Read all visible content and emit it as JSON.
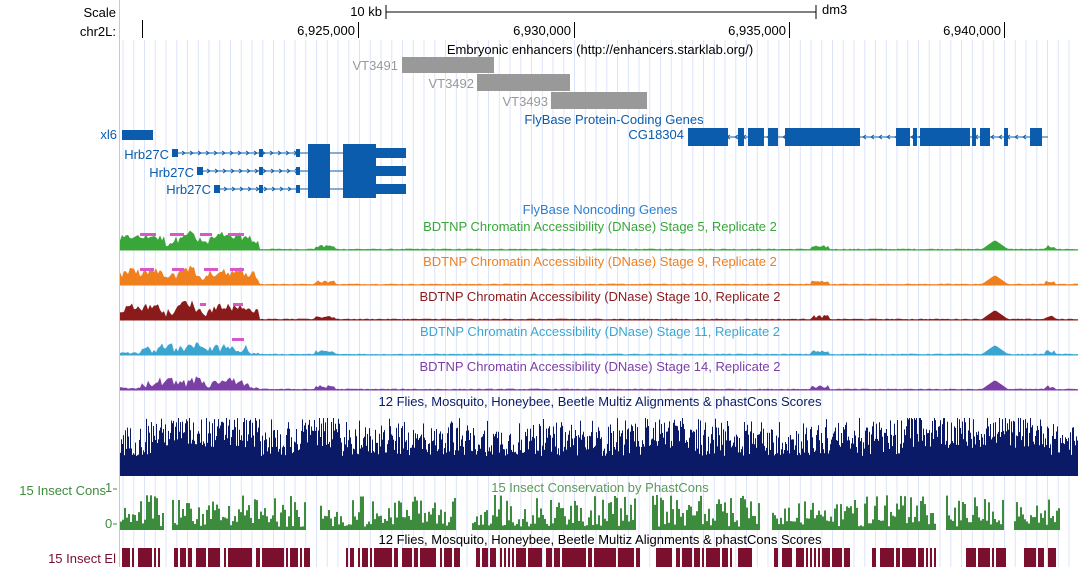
{
  "browser": {
    "scale_label": "Scale",
    "chrom_label": "chr2L:",
    "scalebar_label": "10 kb",
    "assembly": "dm3",
    "ticks": [
      "6,925,000",
      "6,930,000",
      "6,935,000",
      "6,940,000"
    ]
  },
  "tracks": {
    "enhancers": {
      "title": "Embryonic enhancers (http://enhancers.starklab.org/)",
      "items": [
        "VT3491",
        "VT3492",
        "VT3493"
      ],
      "color": "#999999"
    },
    "protein_coding": {
      "title": "FlyBase Protein-Coding Genes",
      "color": "#0b5cad",
      "genes": [
        "xl6",
        "Hrb27C",
        "Hrb27C",
        "Hrb27C",
        "CG18304"
      ]
    },
    "noncoding": {
      "title": "FlyBase Noncoding Genes",
      "color": "#2b7fd0"
    },
    "dnase": [
      {
        "title": "BDTNP Chromatin Accessibility (DNase) Stage 5, Replicate 2",
        "color": "#3aa63a"
      },
      {
        "title": "BDTNP Chromatin Accessibility (DNase) Stage 9, Replicate 2",
        "color": "#f07f1d"
      },
      {
        "title": "BDTNP Chromatin Accessibility (DNase) Stage 10, Replicate 2",
        "color": "#8b1a1a"
      },
      {
        "title": "BDTNP Chromatin Accessibility (DNase) Stage 11, Replicate 2",
        "color": "#3aa6d0"
      },
      {
        "title": "BDTNP Chromatin Accessibility (DNase) Stage 14, Replicate 2",
        "color": "#7b3fa6"
      }
    ],
    "multiz": {
      "title": "12 Flies, Mosquito, Honeybee, Beetle Multiz Alignments & phastCons Scores",
      "color": "#0b1a66"
    },
    "cons": {
      "side_label": "15 Insect Cons",
      "max_label": "1",
      "min_label": "0",
      "title": "15 Insect Conservation by PhastCons",
      "color": "#3d8b3d",
      "title_color": "#5a9a5a"
    },
    "multiz2": {
      "title": "12 Flies, Mosquito, Honeybee, Beetle Multiz Alignments & phastCons Scores"
    },
    "elements": {
      "side_label": "15 Insect El",
      "color": "#7a0f2e"
    }
  },
  "highlight_color": "#d957c8"
}
